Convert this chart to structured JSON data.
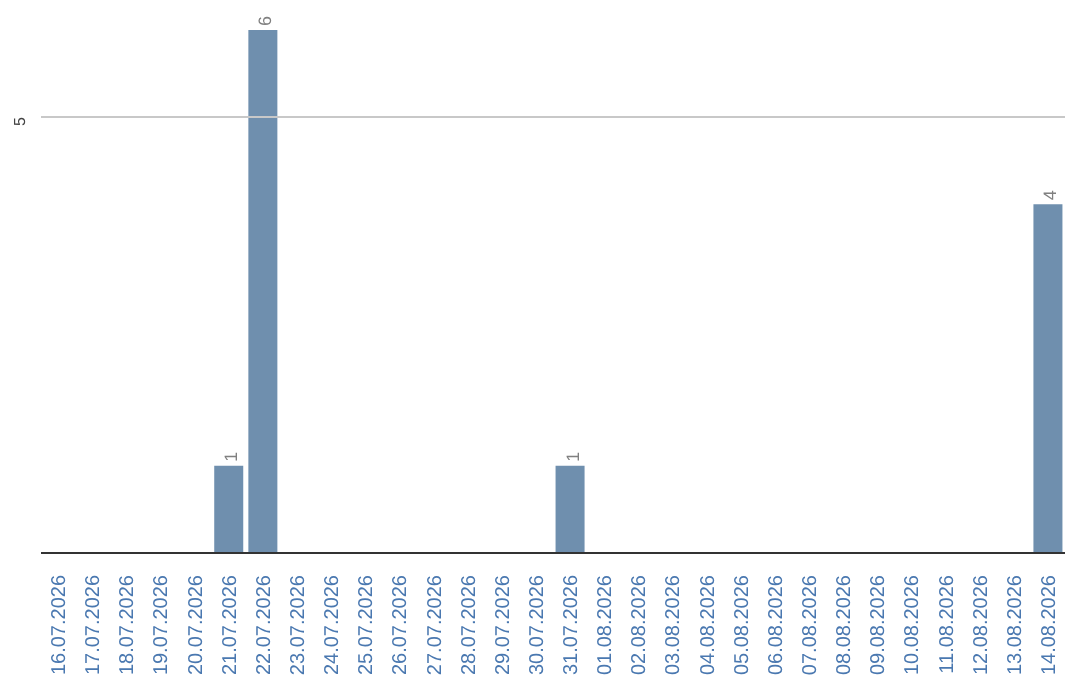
{
  "chart_data": {
    "type": "bar",
    "categories": [
      "16.07.2026",
      "17.07.2026",
      "18.07.2026",
      "19.07.2026",
      "20.07.2026",
      "21.07.2026",
      "22.07.2026",
      "23.07.2026",
      "24.07.2026",
      "25.07.2026",
      "26.07.2026",
      "27.07.2026",
      "28.07.2026",
      "29.07.2026",
      "30.07.2026",
      "31.07.2026",
      "01.08.2026",
      "02.08.2026",
      "03.08.2026",
      "04.08.2026",
      "05.08.2026",
      "06.08.2026",
      "07.08.2026",
      "08.08.2026",
      "09.08.2026",
      "10.08.2026",
      "11.08.2026",
      "12.08.2026",
      "13.08.2026",
      "14.08.2026"
    ],
    "values": [
      0,
      0,
      0,
      0,
      0,
      1,
      6,
      0,
      0,
      0,
      0,
      0,
      0,
      0,
      0,
      1,
      0,
      0,
      0,
      0,
      0,
      0,
      0,
      0,
      0,
      0,
      0,
      0,
      0,
      4
    ],
    "value_labels": [
      null,
      null,
      null,
      null,
      null,
      "1",
      "6",
      null,
      null,
      null,
      null,
      null,
      null,
      null,
      null,
      "1",
      null,
      null,
      null,
      null,
      null,
      null,
      null,
      null,
      null,
      null,
      null,
      null,
      null,
      "4"
    ],
    "color": "#6f8fae",
    "ref_lines": [
      {
        "axis": "y",
        "value": 5,
        "label": "5",
        "color": "#c8c8c8"
      }
    ]
  }
}
